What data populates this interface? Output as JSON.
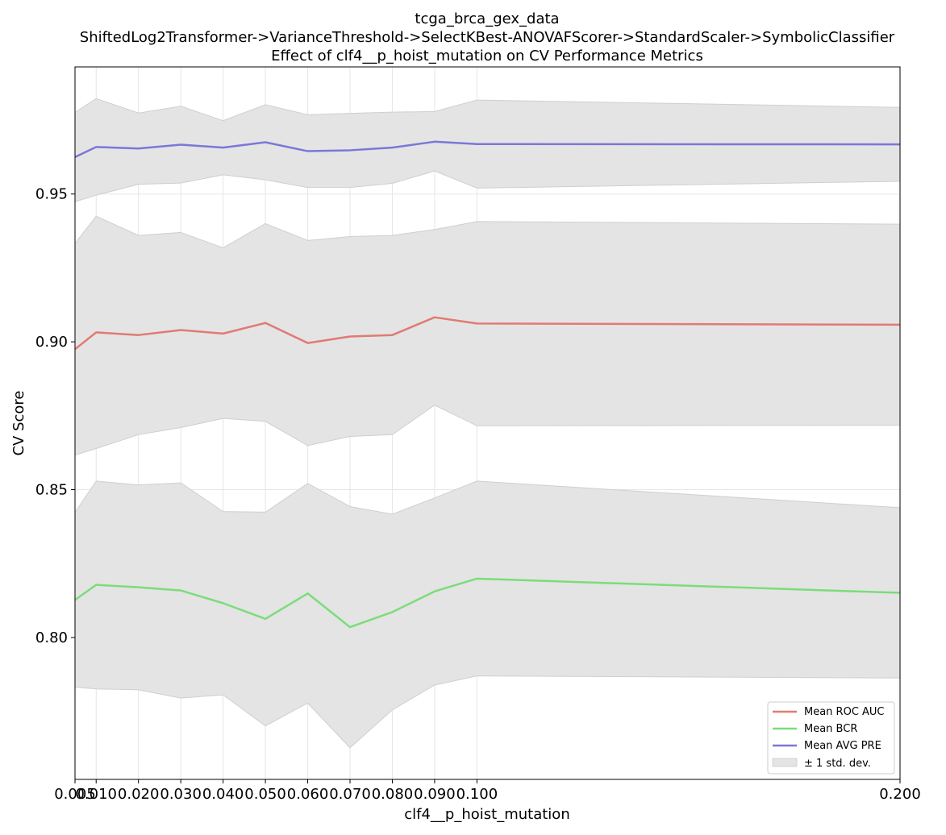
{
  "chart_data": {
    "type": "line",
    "title_lines": [
      "tcga_brca_gex_data",
      "ShiftedLog2Transformer->VarianceThreshold->SelectKBest-ANOVAFScorer->StandardScaler->SymbolicClassifier",
      "Effect of clf4__p_hoist_mutation on CV Performance Metrics"
    ],
    "xlabel": "clf4__p_hoist_mutation",
    "ylabel": "CV Score",
    "x": [
      0.005,
      0.01,
      0.02,
      0.03,
      0.04,
      0.05,
      0.06,
      0.07,
      0.08,
      0.09,
      0.1,
      0.2
    ],
    "x_tick_labels": [
      "0.005",
      "0.010",
      "0.020",
      "0.030",
      "0.040",
      "0.050",
      "0.060",
      "0.070",
      "0.080",
      "0.090",
      "0.100",
      "0.200"
    ],
    "xlim": [
      0.005,
      0.2
    ],
    "ylim": [
      0.752,
      0.993
    ],
    "y_ticks": [
      0.8,
      0.85,
      0.9,
      0.95
    ],
    "y_tick_labels": [
      "0.80",
      "0.85",
      "0.90",
      "0.95"
    ],
    "grid": true,
    "legend_position": "lower-right",
    "band_label": "± 1 std. dev.",
    "band_color": "#e4e4e4",
    "series": [
      {
        "name": "Mean ROC AUC",
        "color": "#e07b72",
        "values": [
          0.8975,
          0.9032,
          0.9023,
          0.904,
          0.9028,
          0.9064,
          0.8996,
          0.9018,
          0.9023,
          0.9083,
          0.9062,
          0.9058
        ],
        "upper": [
          0.9333,
          0.9425,
          0.936,
          0.937,
          0.9318,
          0.94,
          0.9343,
          0.9356,
          0.936,
          0.938,
          0.9407,
          0.9398
        ],
        "lower": [
          0.8617,
          0.8639,
          0.8686,
          0.871,
          0.8741,
          0.8731,
          0.8649,
          0.868,
          0.8686,
          0.8786,
          0.8716,
          0.8718
        ]
      },
      {
        "name": "Mean BCR",
        "color": "#7cdc7a",
        "values": [
          0.8127,
          0.8178,
          0.817,
          0.8159,
          0.8116,
          0.8063,
          0.8149,
          0.8035,
          0.8086,
          0.8156,
          0.8199,
          0.8151
        ],
        "upper": [
          0.8423,
          0.8529,
          0.8516,
          0.8523,
          0.8426,
          0.8424,
          0.8521,
          0.8443,
          0.8417,
          0.8472,
          0.8529,
          0.8439
        ],
        "lower": [
          0.7832,
          0.7826,
          0.7823,
          0.7795,
          0.7806,
          0.7701,
          0.7778,
          0.7627,
          0.7755,
          0.7839,
          0.787,
          0.7863
        ]
      },
      {
        "name": "Mean AVG PRE",
        "color": "#7b77d8",
        "values": [
          0.9625,
          0.9659,
          0.9654,
          0.9667,
          0.9657,
          0.9675,
          0.9645,
          0.9648,
          0.9657,
          0.9677,
          0.9669,
          0.9668
        ],
        "upper": [
          0.9776,
          0.9823,
          0.9774,
          0.9797,
          0.9748,
          0.9802,
          0.9768,
          0.9773,
          0.9777,
          0.9779,
          0.9818,
          0.9793
        ],
        "lower": [
          0.9474,
          0.9496,
          0.9533,
          0.9537,
          0.9565,
          0.9548,
          0.9522,
          0.9522,
          0.9536,
          0.9578,
          0.952,
          0.9543
        ]
      }
    ]
  }
}
